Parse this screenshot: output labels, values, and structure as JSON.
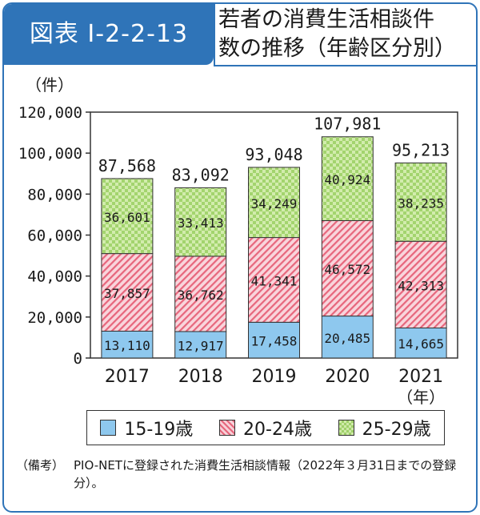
{
  "figure": {
    "label": "図表 I-2-2-13",
    "title_line1": "若者の消費生活相談件",
    "title_line2": "数の推移（年齢区分別）"
  },
  "chart_data": {
    "type": "bar",
    "stacked": true,
    "categories": [
      "2017",
      "2018",
      "2019",
      "2020",
      "2021"
    ],
    "series": [
      {
        "name": "15-19歳",
        "values": [
          13110,
          12917,
          17458,
          20485,
          14665
        ],
        "labels": [
          "13,110",
          "12,917",
          "17,458",
          "20,485",
          "14,665"
        ],
        "color": "#8ec8ee"
      },
      {
        "name": "20-24歳",
        "values": [
          37857,
          36762,
          41341,
          46572,
          42313
        ],
        "labels": [
          "37,857",
          "36,762",
          "41,341",
          "46,572",
          "42,313"
        ],
        "color": "#e7667c"
      },
      {
        "name": "25-29歳",
        "values": [
          36601,
          33413,
          34249,
          40924,
          38235
        ],
        "labels": [
          "36,601",
          "33,413",
          "34,249",
          "40,924",
          "38,235"
        ],
        "color": "#9fd06a"
      }
    ],
    "totals": [
      87568,
      83092,
      93048,
      107981,
      95213
    ],
    "total_labels": [
      "87,568",
      "83,092",
      "93,048",
      "107,981",
      "95,213"
    ],
    "ylabel": "（件）",
    "xunit": "（年）",
    "ylim": [
      0,
      120000
    ],
    "yticks": [
      0,
      20000,
      40000,
      60000,
      80000,
      100000,
      120000
    ],
    "ytick_labels": [
      "0",
      "20,000",
      "40,000",
      "60,000",
      "80,000",
      "100,000",
      "120,000"
    ],
    "grid": false,
    "legend_position": "bottom"
  },
  "legend": {
    "items": [
      "15-19歳",
      "20-24歳",
      "25-29歳"
    ]
  },
  "note": {
    "label": "（備考）",
    "text": "PIO-NETに登録された消費生活相談情報（2022年３月31日までの登録分）。"
  }
}
